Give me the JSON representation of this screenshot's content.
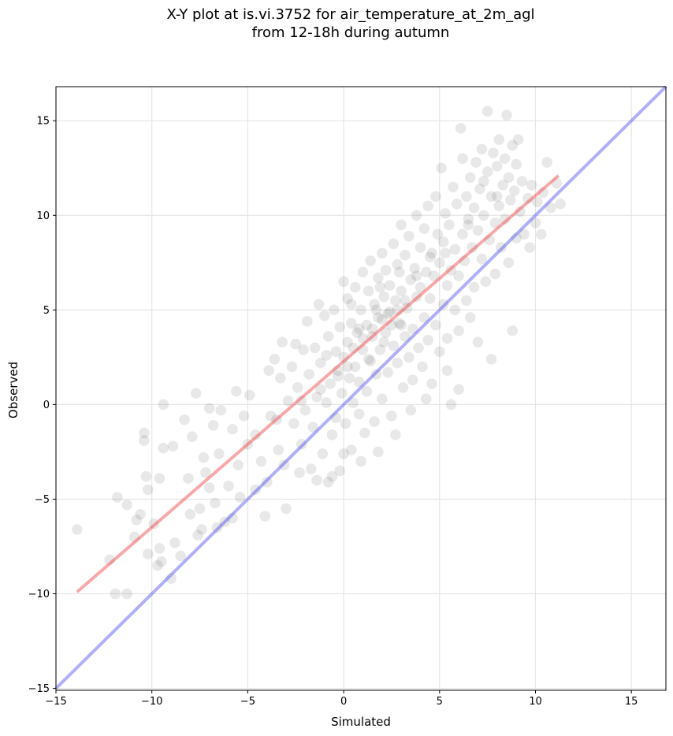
{
  "chart_data": {
    "type": "scatter",
    "title": [
      "X-Y plot at is.vi.3752 for air_temperature_at_2m_agl",
      "from 12-18h during autumn"
    ],
    "xlabel": "Simulated",
    "ylabel": "Observed",
    "xlim": [
      -15,
      16.8
    ],
    "ylim": [
      -15.1,
      16.8
    ],
    "xticks": [
      -15,
      -10,
      -5,
      0,
      5,
      10,
      15
    ],
    "yticks": [
      -15,
      -10,
      -5,
      0,
      5,
      10,
      15
    ],
    "xtick_labels": [
      "−15",
      "−10",
      "−5",
      "0",
      "5",
      "10",
      "15"
    ],
    "ytick_labels": [
      "−15",
      "−10",
      "−5",
      "0",
      "5",
      "10",
      "15"
    ],
    "grid": true,
    "point_color": "#000000",
    "point_alpha": 0.09,
    "points": [
      [
        -13.9,
        -6.6
      ],
      [
        -12.2,
        -8.2
      ],
      [
        -11.8,
        -4.9
      ],
      [
        -11.3,
        -10.0
      ],
      [
        -11.3,
        -5.3
      ],
      [
        -10.9,
        -7.0
      ],
      [
        -10.8,
        -6.1
      ],
      [
        -10.6,
        -5.8
      ],
      [
        -10.4,
        -1.5
      ],
      [
        -10.4,
        -1.9
      ],
      [
        -10.3,
        -3.8
      ],
      [
        -10.2,
        -4.5
      ],
      [
        -10.2,
        -7.9
      ],
      [
        -9.9,
        -6.3
      ],
      [
        -9.6,
        -3.9
      ],
      [
        -9.6,
        -7.6
      ],
      [
        -9.5,
        -8.3
      ],
      [
        -9.4,
        0.0
      ],
      [
        -9.4,
        -2.3
      ],
      [
        -9.0,
        -9.2
      ],
      [
        -8.9,
        -2.2
      ],
      [
        -8.8,
        -7.3
      ],
      [
        -8.3,
        -0.8
      ],
      [
        -8.1,
        -3.9
      ],
      [
        -8.0,
        -5.8
      ],
      [
        -7.9,
        -1.7
      ],
      [
        -7.7,
        0.6
      ],
      [
        -7.6,
        -6.9
      ],
      [
        -7.5,
        -5.5
      ],
      [
        -7.3,
        -2.8
      ],
      [
        -7.2,
        -3.6
      ],
      [
        -7.0,
        -0.2
      ],
      [
        -7.0,
        -4.4
      ],
      [
        -6.8,
        -1.1
      ],
      [
        -6.7,
        -5.2
      ],
      [
        -6.5,
        -2.6
      ],
      [
        -6.4,
        -0.3
      ],
      [
        -6.2,
        -6.2
      ],
      [
        -6.0,
        -4.3
      ],
      [
        -5.8,
        -1.3
      ],
      [
        -5.6,
        0.7
      ],
      [
        -5.5,
        -3.2
      ],
      [
        -5.4,
        -4.9
      ],
      [
        -5.2,
        -0.6
      ],
      [
        -5.0,
        -2.1
      ],
      [
        -4.9,
        0.5
      ],
      [
        -4.6,
        -1.6
      ],
      [
        -4.3,
        -3.0
      ],
      [
        -4.1,
        -5.9
      ],
      [
        -4.0,
        -4.1
      ],
      [
        -3.9,
        1.8
      ],
      [
        -3.8,
        -0.6
      ],
      [
        -3.6,
        2.4
      ],
      [
        -3.4,
        -2.4
      ],
      [
        -3.3,
        1.4
      ],
      [
        -3.2,
        3.3
      ],
      [
        -3.1,
        -3.2
      ],
      [
        -3.0,
        -5.5
      ],
      [
        -2.9,
        0.2
      ],
      [
        -2.7,
        2.0
      ],
      [
        -2.6,
        -1.0
      ],
      [
        -2.5,
        3.2
      ],
      [
        -2.4,
        0.9
      ],
      [
        -2.2,
        -2.1
      ],
      [
        -2.1,
        2.9
      ],
      [
        -2.0,
        -0.3
      ],
      [
        -1.9,
        4.4
      ],
      [
        -1.8,
        1.6
      ],
      [
        -1.7,
        -3.4
      ],
      [
        -1.6,
        -1.2
      ],
      [
        -1.5,
        3.0
      ],
      [
        -1.4,
        0.4
      ],
      [
        -1.3,
        5.3
      ],
      [
        -1.2,
        2.2
      ],
      [
        -1.1,
        -2.6
      ],
      [
        -1.0,
        4.7
      ],
      [
        -0.9,
        0.1
      ],
      [
        -0.8,
        -4.1
      ],
      [
        -0.8,
        3.6
      ],
      [
        -0.7,
        1.1
      ],
      [
        -0.6,
        -1.6
      ],
      [
        -0.5,
        5.0
      ],
      [
        -0.4,
        2.8
      ],
      [
        -0.4,
        -0.7
      ],
      [
        -0.3,
        1.8
      ],
      [
        -0.2,
        4.1
      ],
      [
        -0.2,
        -3.5
      ],
      [
        -0.1,
        0.6
      ],
      [
        0.0,
        6.5
      ],
      [
        0.0,
        2.5
      ],
      [
        0.1,
        -1.0
      ],
      [
        0.2,
        3.3
      ],
      [
        0.2,
        5.6
      ],
      [
        0.3,
        1.4
      ],
      [
        0.4,
        -2.4
      ],
      [
        0.4,
        4.3
      ],
      [
        0.5,
        0.1
      ],
      [
        0.6,
        2.0
      ],
      [
        0.6,
        6.2
      ],
      [
        0.7,
        3.8
      ],
      [
        0.8,
        -0.5
      ],
      [
        0.8,
        1.2
      ],
      [
        0.9,
        5.0
      ],
      [
        1.0,
        7.0
      ],
      [
        1.0,
        2.9
      ],
      [
        1.1,
        -1.5
      ],
      [
        1.2,
        4.2
      ],
      [
        1.2,
        0.7
      ],
      [
        1.3,
        6.0
      ],
      [
        1.4,
        2.3
      ],
      [
        1.4,
        7.6
      ],
      [
        1.5,
        3.6
      ],
      [
        1.6,
        -0.9
      ],
      [
        1.6,
        5.3
      ],
      [
        1.7,
        1.6
      ],
      [
        1.8,
        6.7
      ],
      [
        1.8,
        4.6
      ],
      [
        1.9,
        2.9
      ],
      [
        2.0,
        8.0
      ],
      [
        2.0,
        0.3
      ],
      [
        2.1,
        5.7
      ],
      [
        2.2,
        3.8
      ],
      [
        2.2,
        7.1
      ],
      [
        2.3,
        1.7
      ],
      [
        2.4,
        4.9
      ],
      [
        2.4,
        6.3
      ],
      [
        2.5,
        -0.6
      ],
      [
        2.6,
        8.5
      ],
      [
        2.6,
        3.1
      ],
      [
        2.7,
        5.5
      ],
      [
        2.8,
        7.4
      ],
      [
        2.8,
        2.2
      ],
      [
        2.9,
        4.3
      ],
      [
        3.0,
        9.5
      ],
      [
        3.0,
        6.0
      ],
      [
        3.1,
        0.9
      ],
      [
        3.2,
        3.6
      ],
      [
        3.2,
        7.9
      ],
      [
        3.3,
        5.1
      ],
      [
        3.4,
        2.5
      ],
      [
        3.4,
        8.9
      ],
      [
        3.5,
        6.6
      ],
      [
        3.6,
        4.0
      ],
      [
        3.6,
        1.3
      ],
      [
        3.7,
        7.2
      ],
      [
        3.8,
        10.0
      ],
      [
        3.8,
        5.7
      ],
      [
        3.9,
        3.0
      ],
      [
        4.0,
        8.3
      ],
      [
        4.0,
        6.2
      ],
      [
        4.1,
        2.0
      ],
      [
        4.2,
        4.6
      ],
      [
        4.2,
        9.3
      ],
      [
        4.3,
        7.0
      ],
      [
        4.4,
        10.5
      ],
      [
        4.4,
        3.4
      ],
      [
        4.5,
        5.6
      ],
      [
        4.6,
        8.0
      ],
      [
        4.6,
        1.1
      ],
      [
        4.7,
        6.8
      ],
      [
        4.8,
        11.0
      ],
      [
        4.8,
        4.2
      ],
      [
        4.9,
        9.0
      ],
      [
        5.0,
        7.5
      ],
      [
        5.0,
        2.8
      ],
      [
        5.1,
        12.5
      ],
      [
        5.2,
        5.3
      ],
      [
        5.2,
        8.6
      ],
      [
        5.3,
        10.1
      ],
      [
        5.4,
        6.3
      ],
      [
        5.4,
        3.5
      ],
      [
        5.5,
        9.5
      ],
      [
        5.6,
        7.1
      ],
      [
        5.6,
        0.0
      ],
      [
        5.7,
        11.5
      ],
      [
        5.8,
        5.0
      ],
      [
        5.8,
        8.2
      ],
      [
        5.9,
        10.6
      ],
      [
        6.0,
        6.8
      ],
      [
        6.0,
        3.9
      ],
      [
        6.1,
        14.6
      ],
      [
        6.2,
        9.0
      ],
      [
        6.2,
        13.0
      ],
      [
        6.3,
        7.6
      ],
      [
        6.4,
        11.0
      ],
      [
        6.4,
        5.5
      ],
      [
        6.5,
        9.8
      ],
      [
        6.6,
        12.0
      ],
      [
        6.6,
        4.6
      ],
      [
        6.7,
        8.3
      ],
      [
        6.8,
        10.4
      ],
      [
        6.8,
        6.2
      ],
      [
        6.9,
        12.8
      ],
      [
        7.0,
        9.2
      ],
      [
        7.0,
        3.3
      ],
      [
        7.1,
        11.4
      ],
      [
        7.2,
        7.7
      ],
      [
        7.2,
        13.5
      ],
      [
        7.3,
        10.0
      ],
      [
        7.4,
        6.5
      ],
      [
        7.5,
        12.3
      ],
      [
        7.5,
        15.5
      ],
      [
        7.6,
        8.7
      ],
      [
        7.7,
        11.0
      ],
      [
        7.7,
        2.4
      ],
      [
        7.8,
        13.3
      ],
      [
        7.9,
        9.6
      ],
      [
        7.9,
        6.9
      ],
      [
        8.0,
        12.6
      ],
      [
        8.1,
        10.5
      ],
      [
        8.1,
        14.0
      ],
      [
        8.2,
        8.3
      ],
      [
        8.3,
        11.6
      ],
      [
        8.4,
        13.0
      ],
      [
        8.4,
        9.8
      ],
      [
        8.5,
        15.3
      ],
      [
        8.6,
        12.0
      ],
      [
        8.6,
        7.5
      ],
      [
        8.7,
        10.8
      ],
      [
        8.8,
        13.7
      ],
      [
        8.8,
        3.9
      ],
      [
        8.9,
        11.3
      ],
      [
        9.0,
        8.8
      ],
      [
        9.0,
        12.7
      ],
      [
        9.1,
        14.0
      ],
      [
        9.2,
        10.2
      ],
      [
        9.3,
        11.8
      ],
      [
        9.4,
        9.0
      ],
      [
        9.6,
        10.9
      ],
      [
        9.7,
        8.3
      ],
      [
        9.8,
        11.6
      ],
      [
        10.0,
        9.6
      ],
      [
        10.1,
        10.7
      ],
      [
        10.3,
        9.0
      ],
      [
        10.4,
        11.2
      ],
      [
        10.6,
        12.8
      ],
      [
        10.8,
        10.4
      ],
      [
        11.1,
        11.7
      ],
      [
        11.3,
        10.6
      ],
      [
        6.0,
        0.8
      ],
      [
        5.4,
        1.8
      ],
      [
        4.3,
        0.3
      ],
      [
        3.5,
        -0.3
      ],
      [
        2.7,
        -1.6
      ],
      [
        1.8,
        -2.5
      ],
      [
        0.9,
        -3.0
      ],
      [
        0.0,
        -2.6
      ],
      [
        -0.6,
        -3.8
      ],
      [
        -1.4,
        -4.0
      ],
      [
        -2.3,
        -3.6
      ],
      [
        -4.6,
        -4.5
      ],
      [
        -5.8,
        -6.0
      ],
      [
        -6.6,
        -6.5
      ],
      [
        -7.4,
        -6.6
      ],
      [
        -8.5,
        -8.0
      ],
      [
        -9.7,
        -8.5
      ],
      [
        -11.9,
        -10.0
      ],
      [
        2.0,
        4.5
      ],
      [
        2.3,
        4.8
      ],
      [
        2.5,
        4.2
      ],
      [
        1.7,
        5.0
      ],
      [
        2.8,
        5.0
      ],
      [
        1.5,
        4.0
      ],
      [
        1.0,
        3.5
      ],
      [
        0.5,
        3.0
      ],
      [
        3.2,
        5.5
      ],
      [
        1.3,
        2.4
      ],
      [
        0.2,
        2.0
      ],
      [
        -0.3,
        1.5
      ],
      [
        0.8,
        4.0
      ],
      [
        2.1,
        3.3
      ],
      [
        3.0,
        4.2
      ],
      [
        3.8,
        6.8
      ],
      [
        4.5,
        7.8
      ],
      [
        5.3,
        8.0
      ],
      [
        6.5,
        9.5
      ],
      [
        7.3,
        11.8
      ],
      [
        8.0,
        11.0
      ],
      [
        1.9,
        6.2
      ],
      [
        2.9,
        7.0
      ],
      [
        -1.2,
        0.8
      ],
      [
        -2.2,
        0.2
      ],
      [
        -3.5,
        -0.8
      ],
      [
        -0.9,
        2.6
      ],
      [
        0.4,
        5.3
      ]
    ],
    "series": [
      {
        "type": "line",
        "color": "#ef2f2f",
        "alpha": 0.42,
        "points": [
          [
            -13.9,
            -9.9
          ],
          [
            11.2,
            12.1
          ]
        ]
      },
      {
        "type": "line",
        "color": "#2f2fef",
        "alpha": 0.38,
        "points": [
          [
            -15.0,
            -15.0
          ],
          [
            16.8,
            16.8
          ]
        ]
      }
    ]
  }
}
